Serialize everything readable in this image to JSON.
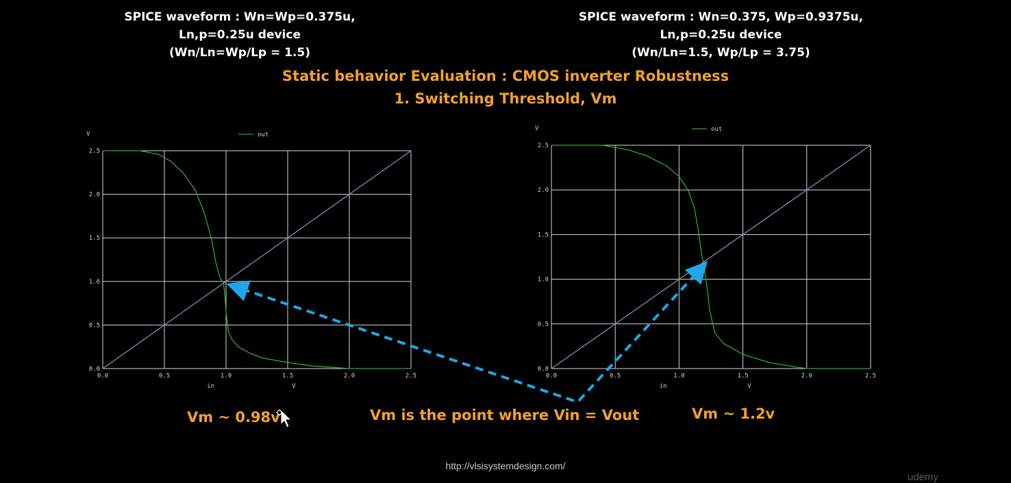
{
  "captions": {
    "left": [
      "SPICE waveform : Wn=Wp=0.375u,",
      "Ln,p=0.25u device",
      "(Wn/Ln=Wp/Lp = 1.5)"
    ],
    "right": [
      "SPICE waveform : Wn=0.375, Wp=0.9375u,",
      "Ln,p=0.25u device",
      "(Wn/Ln=1.5, Wp/Lp = 3.75)"
    ]
  },
  "headline": {
    "line1": "Static behavior Evaluation : CMOS inverter Robustness",
    "line2": "1. Switching Threshold, Vm"
  },
  "notes": {
    "vm_left": "Vm ~ 0.98v",
    "vm_right": "Vm ~ 1.2v",
    "definition": "Vm is the point where Vin = Vout"
  },
  "footer": {
    "url": "http://vlsisystemdesign.com/",
    "brand": "udemy"
  },
  "colors": {
    "background": "#000000",
    "accent": "#f0a22a",
    "curve": "#2fa82f",
    "reference_line": "#7f8fb0",
    "grid": "#d8d8d8",
    "arrow": "#1ea7e8"
  },
  "chart_data": [
    {
      "type": "line",
      "title": "",
      "xlabel": "in",
      "xunit": "V",
      "yunit": "V",
      "xlim": [
        0,
        2.5
      ],
      "ylim": [
        0,
        2.5
      ],
      "x_ticks": [
        "0.0",
        "0.5",
        "1.0",
        "1.5",
        "2.0",
        "2.5"
      ],
      "y_ticks": [
        "0.0",
        "0.5",
        "1.0",
        "1.5",
        "2.0",
        "2.5"
      ],
      "grid": true,
      "legend": "top-center",
      "series": [
        {
          "name": "out",
          "color": "#2fa82f",
          "x": [
            0.0,
            0.3,
            0.45,
            0.55,
            0.65,
            0.75,
            0.82,
            0.88,
            0.92,
            0.95,
            0.97,
            0.98,
            0.99,
            1.0,
            1.02,
            1.05,
            1.1,
            1.2,
            1.3,
            1.5,
            1.7,
            1.9,
            2.0,
            2.5
          ],
          "y": [
            2.5,
            2.5,
            2.46,
            2.38,
            2.25,
            2.05,
            1.8,
            1.5,
            1.2,
            1.05,
            1.0,
            0.98,
            0.85,
            0.65,
            0.42,
            0.33,
            0.25,
            0.17,
            0.12,
            0.07,
            0.03,
            0.01,
            0.0,
            0.0
          ]
        },
        {
          "name": "",
          "color": "#7f8fb0",
          "x": [
            0.0,
            2.5
          ],
          "y": [
            0.0,
            2.5
          ]
        }
      ]
    },
    {
      "type": "line",
      "title": "",
      "xlabel": "in",
      "xunit": "V",
      "yunit": "V",
      "xlim": [
        0,
        2.5
      ],
      "ylim": [
        0,
        2.5
      ],
      "x_ticks": [
        "0.0",
        "0.5",
        "1.0",
        "1.5",
        "2.0",
        "2.5"
      ],
      "y_ticks": [
        "0.0",
        "0.5",
        "1.0",
        "1.5",
        "2.0",
        "2.5"
      ],
      "grid": true,
      "legend": "top-center",
      "series": [
        {
          "name": "out",
          "color": "#2fa82f",
          "x": [
            0.0,
            0.4,
            0.6,
            0.75,
            0.9,
            1.0,
            1.07,
            1.12,
            1.15,
            1.17,
            1.18,
            1.19,
            1.2,
            1.22,
            1.24,
            1.28,
            1.35,
            1.5,
            1.7,
            1.9,
            2.0,
            2.5
          ],
          "y": [
            2.5,
            2.5,
            2.45,
            2.38,
            2.27,
            2.15,
            2.0,
            1.8,
            1.55,
            1.35,
            1.25,
            1.2,
            1.1,
            0.9,
            0.65,
            0.4,
            0.28,
            0.16,
            0.07,
            0.02,
            0.0,
            0.0
          ]
        },
        {
          "name": "",
          "color": "#7f8fb0",
          "x": [
            0.0,
            2.5
          ],
          "y": [
            0.0,
            2.5
          ]
        }
      ]
    }
  ]
}
